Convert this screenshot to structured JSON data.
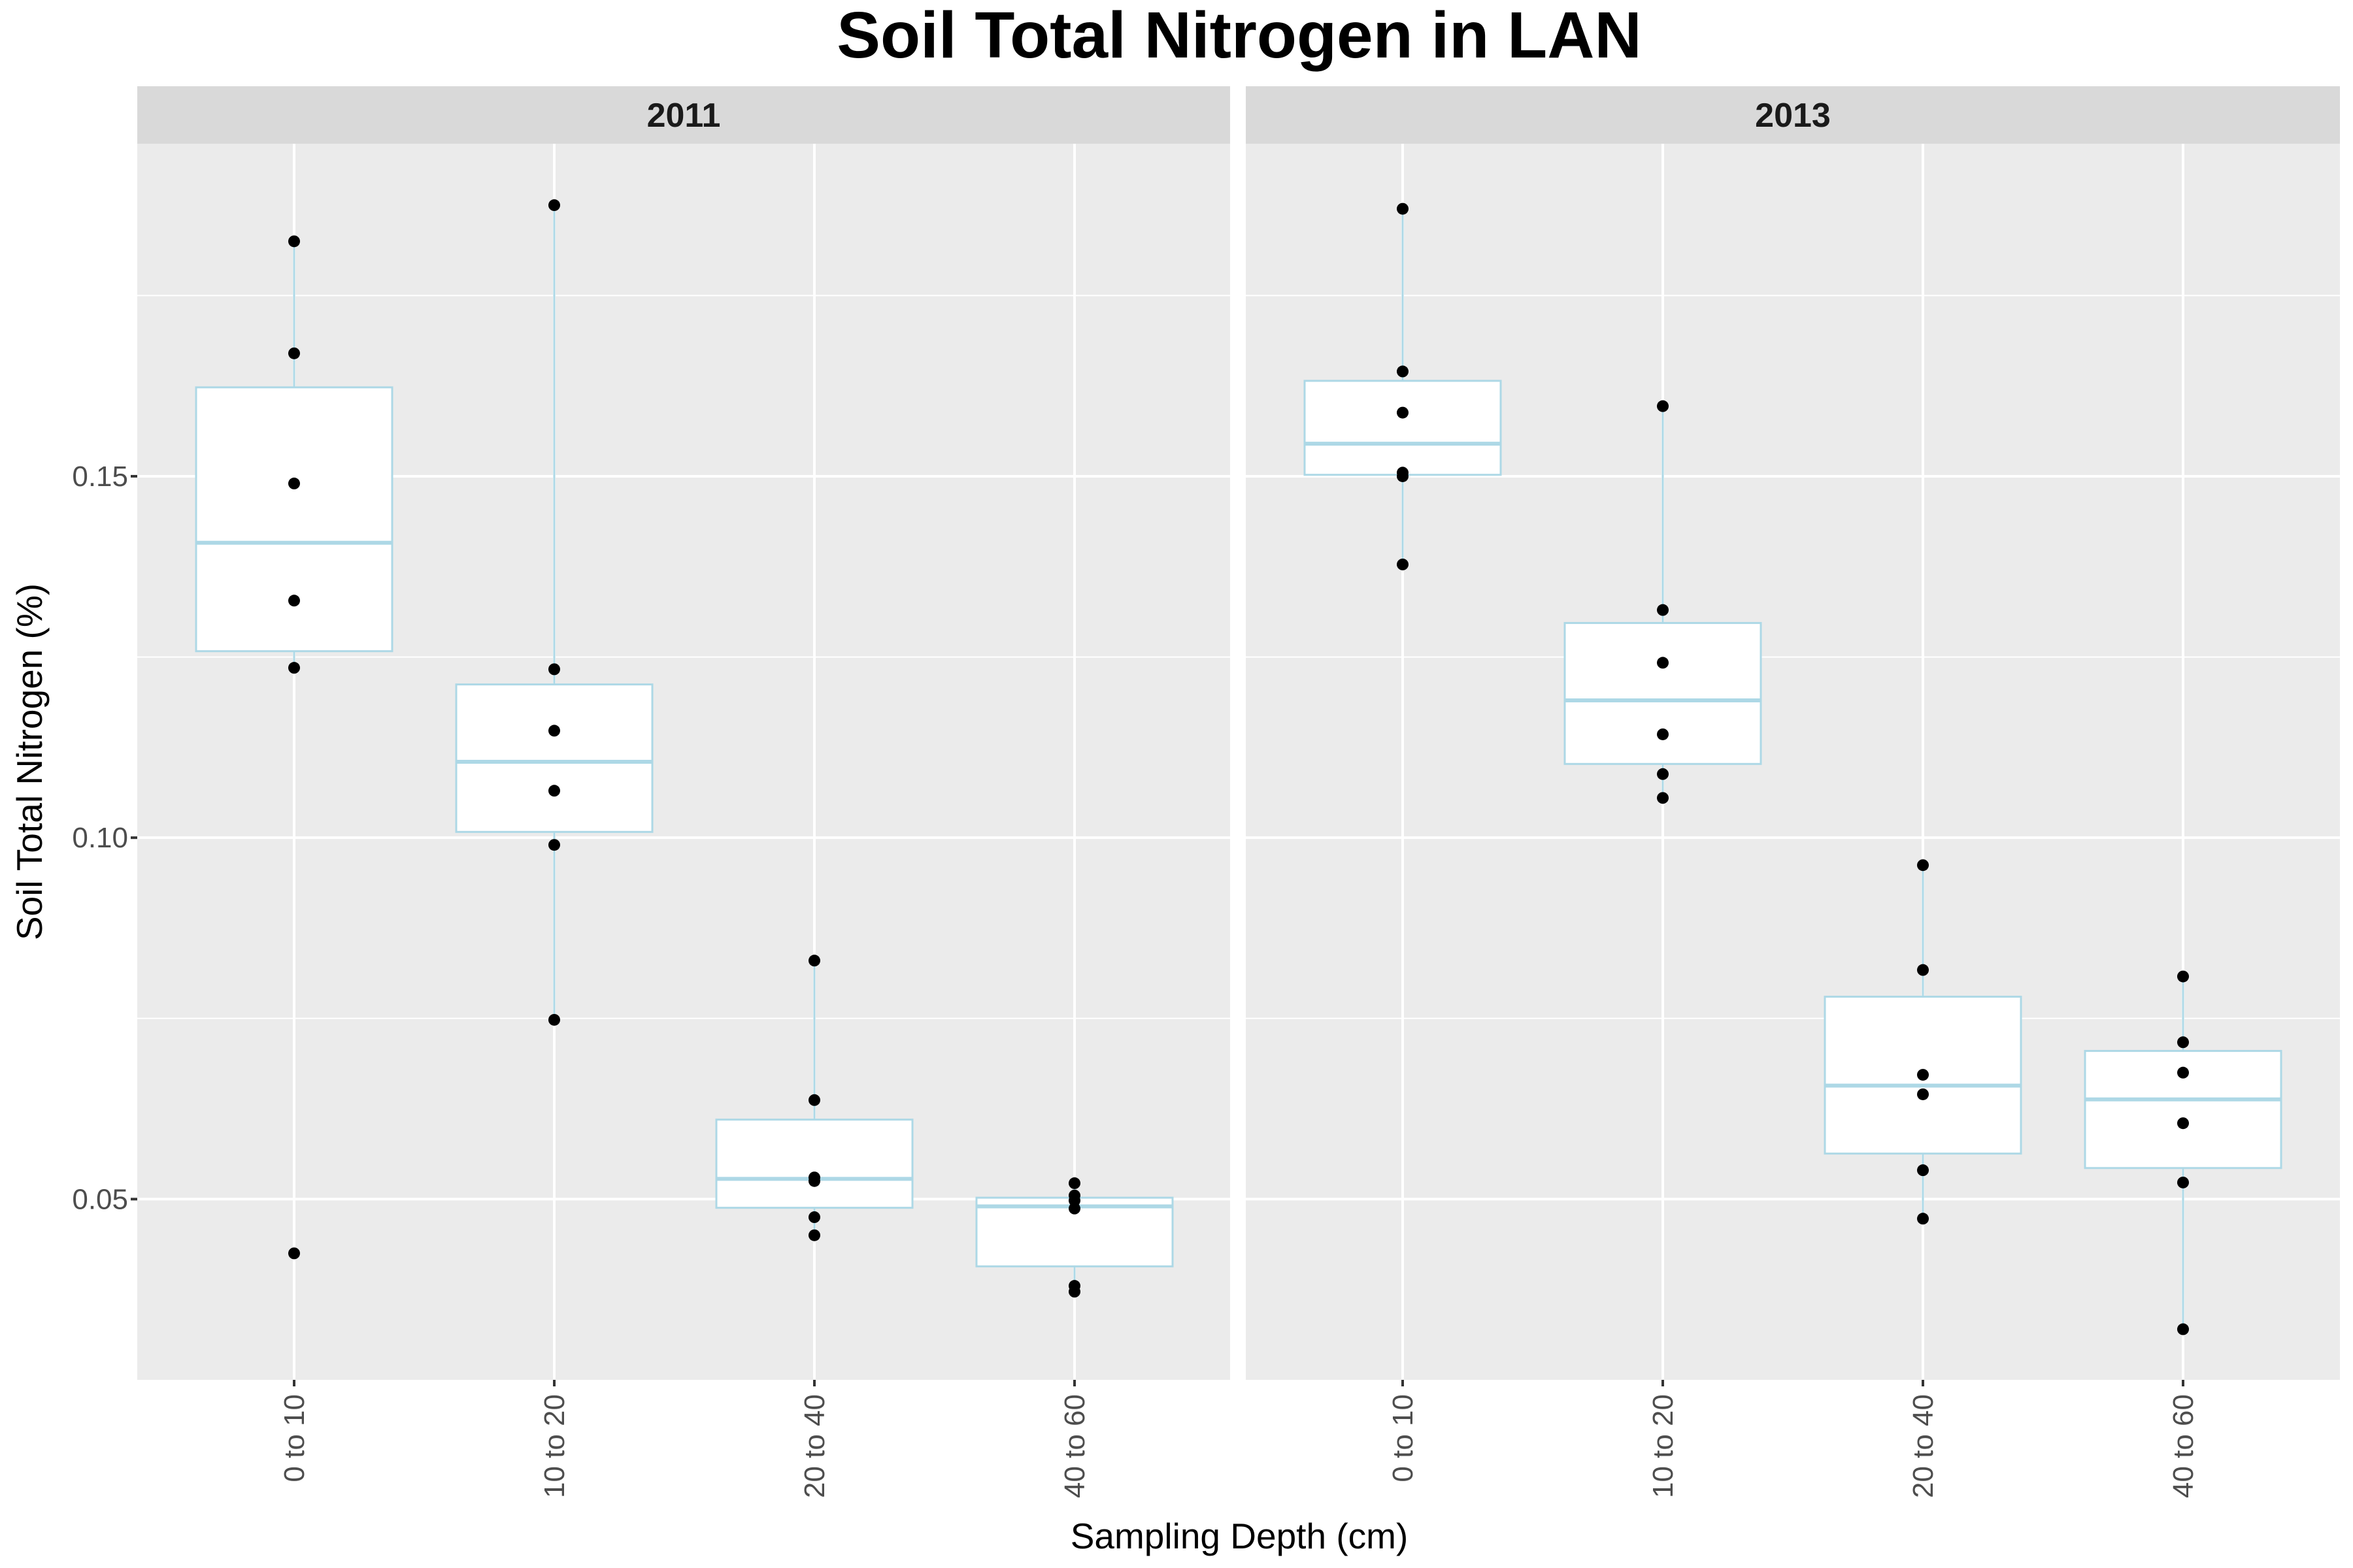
{
  "chart_data": {
    "type": "box",
    "title": "Soil Total Nitrogen in LAN",
    "xlabel": "Sampling Depth (cm)",
    "ylabel": "Soil Total Nitrogen (%)",
    "categories": [
      "0 to 10",
      "10 to 20",
      "20 to 40",
      "40 to 60"
    ],
    "ylim": [
      0.025,
      0.196
    ],
    "yticks": [
      0.05,
      0.1,
      0.15
    ],
    "ytick_labels": [
      "0.05",
      "0.10",
      "0.15"
    ],
    "grid": true,
    "facets": [
      {
        "label": "2011",
        "boxes": [
          {
            "category": "0 to 10",
            "q1": 0.1258,
            "median": 0.1408,
            "q3": 0.1623,
            "whisker_low": 0.1235,
            "whisker_high": 0.1825,
            "points": [
              0.1825,
              0.167,
              0.149,
              0.1328,
              0.1235,
              0.0425
            ]
          },
          {
            "category": "10 to 20",
            "q1": 0.1008,
            "median": 0.1105,
            "q3": 0.1212,
            "whisker_low": 0.0748,
            "whisker_high": 0.1875,
            "points": [
              0.1875,
              0.1233,
              0.1148,
              0.1065,
              0.099,
              0.0748
            ]
          },
          {
            "category": "20 to 40",
            "q1": 0.0488,
            "median": 0.0528,
            "q3": 0.061,
            "whisker_low": 0.045,
            "whisker_high": 0.083,
            "points": [
              0.083,
              0.0637,
              0.053,
              0.0525,
              0.0475,
              0.045
            ]
          },
          {
            "category": "40 to 60",
            "q1": 0.0407,
            "median": 0.049,
            "q3": 0.0502,
            "whisker_low": 0.0372,
            "whisker_high": 0.0522,
            "points": [
              0.0522,
              0.0505,
              0.0498,
              0.0487,
              0.038,
              0.0372
            ]
          }
        ]
      },
      {
        "label": "2013",
        "boxes": [
          {
            "category": "0 to 10",
            "q1": 0.1502,
            "median": 0.1545,
            "q3": 0.1632,
            "whisker_low": 0.1378,
            "whisker_high": 0.187,
            "points": [
              0.187,
              0.1645,
              0.1588,
              0.1505,
              0.15,
              0.1378
            ]
          },
          {
            "category": "10 to 20",
            "q1": 0.1102,
            "median": 0.119,
            "q3": 0.1297,
            "whisker_low": 0.1055,
            "whisker_high": 0.1597,
            "points": [
              0.1597,
              0.1315,
              0.1242,
              0.1143,
              0.1088,
              0.1055
            ]
          },
          {
            "category": "20 to 40",
            "q1": 0.0563,
            "median": 0.0657,
            "q3": 0.078,
            "whisker_low": 0.0473,
            "whisker_high": 0.0962,
            "points": [
              0.0962,
              0.0817,
              0.0672,
              0.0645,
              0.054,
              0.0473
            ]
          },
          {
            "category": "40 to 60",
            "q1": 0.0543,
            "median": 0.0638,
            "q3": 0.0705,
            "whisker_low": 0.032,
            "whisker_high": 0.0808,
            "points": [
              0.0808,
              0.0717,
              0.0675,
              0.0605,
              0.0523,
              0.032
            ]
          }
        ]
      }
    ],
    "colors": {
      "box_fill": "#ffffff",
      "box_outline": "#add8e6",
      "point": "#000000",
      "panel_background": "#ebebeb",
      "strip_background": "#d9d9d9",
      "gridline": "#ffffff"
    }
  }
}
